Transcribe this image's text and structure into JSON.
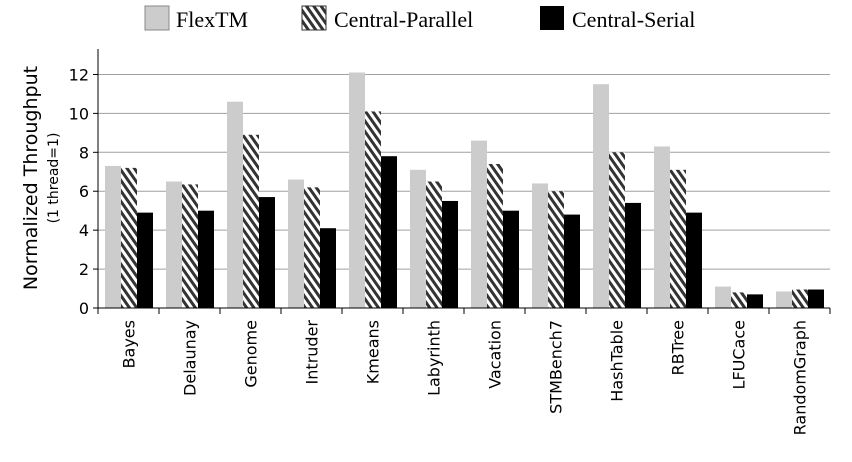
{
  "chart_data": {
    "type": "bar",
    "ylabel": "Normalized Throughput",
    "ylabel_sub": "(1 thread=1)",
    "xlabel": "",
    "ylim": [
      0,
      13
    ],
    "yticks": [
      0,
      2,
      4,
      6,
      8,
      10,
      12
    ],
    "grid": "horizontal",
    "legend_position": "top",
    "categories": [
      "Bayes",
      "Delaunay",
      "Genome",
      "Intruder",
      "Kmeans",
      "Labyrinth",
      "Vacation",
      "STMBench7",
      "HashTable",
      "RBTree",
      "LFUCace",
      "RandomGraph"
    ],
    "series": [
      {
        "name": "FlexTM",
        "style": "solid-light-gray",
        "color": "#cccccc",
        "values": [
          7.3,
          6.5,
          10.6,
          6.6,
          12.1,
          7.1,
          8.6,
          6.4,
          11.5,
          8.3,
          1.1,
          0.85
        ]
      },
      {
        "name": "Central-Parallel",
        "style": "diagonal-hatch",
        "color": "#333333",
        "values": [
          7.2,
          6.35,
          8.9,
          6.2,
          10.1,
          6.5,
          7.4,
          6.0,
          8.0,
          7.1,
          0.8,
          0.95
        ]
      },
      {
        "name": "Central-Serial",
        "style": "solid-black",
        "color": "#000000",
        "values": [
          4.9,
          5.0,
          5.7,
          4.1,
          7.8,
          5.5,
          5.0,
          4.8,
          5.4,
          4.9,
          0.7,
          0.95
        ]
      }
    ]
  }
}
